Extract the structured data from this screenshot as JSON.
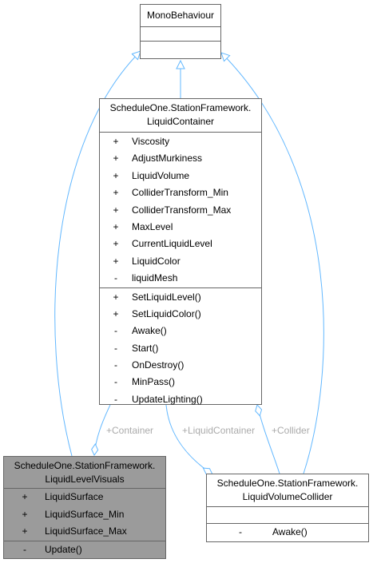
{
  "mono": {
    "title": "MonoBehaviour"
  },
  "container": {
    "title_line1": "ScheduleOne.StationFramework.",
    "title_line2": "LiquidContainer",
    "attributes": [
      {
        "vis": "+",
        "name": "Viscosity"
      },
      {
        "vis": "+",
        "name": "AdjustMurkiness"
      },
      {
        "vis": "+",
        "name": "LiquidVolume"
      },
      {
        "vis": "+",
        "name": "ColliderTransform_Min"
      },
      {
        "vis": "+",
        "name": "ColliderTransform_Max"
      },
      {
        "vis": "+",
        "name": "MaxLevel"
      },
      {
        "vis": "+",
        "name": "CurrentLiquidLevel"
      },
      {
        "vis": "+",
        "name": "LiquidColor"
      },
      {
        "vis": "-",
        "name": "liquidMesh"
      }
    ],
    "operations": [
      {
        "vis": "+",
        "name": "SetLiquidLevel()"
      },
      {
        "vis": "+",
        "name": "SetLiquidColor()"
      },
      {
        "vis": "-",
        "name": "Awake()"
      },
      {
        "vis": "-",
        "name": "Start()"
      },
      {
        "vis": "-",
        "name": "OnDestroy()"
      },
      {
        "vis": "-",
        "name": "MinPass()"
      },
      {
        "vis": "-",
        "name": "UpdateLighting()"
      }
    ]
  },
  "visuals": {
    "title_line1": "ScheduleOne.StationFramework.",
    "title_line2": "LiquidLevelVisuals",
    "attributes": [
      {
        "vis": "+",
        "name": "LiquidSurface"
      },
      {
        "vis": "+",
        "name": "LiquidSurface_Min"
      },
      {
        "vis": "+",
        "name": "LiquidSurface_Max"
      }
    ],
    "operations": [
      {
        "vis": "-",
        "name": "Update()"
      }
    ]
  },
  "collider": {
    "title_line1": "ScheduleOne.StationFramework.",
    "title_line2": "LiquidVolumeCollider",
    "operations": [
      {
        "vis": "-",
        "name": "Awake()"
      }
    ]
  },
  "edge_labels": {
    "container": "+Container",
    "liquid_container": "+LiquidContainer",
    "collider": "+Collider"
  },
  "colors": {
    "edge": "#63b8ff",
    "box_border": "#666666",
    "selected_fill": "#9b9b9b",
    "edge_label": "#ababab"
  }
}
